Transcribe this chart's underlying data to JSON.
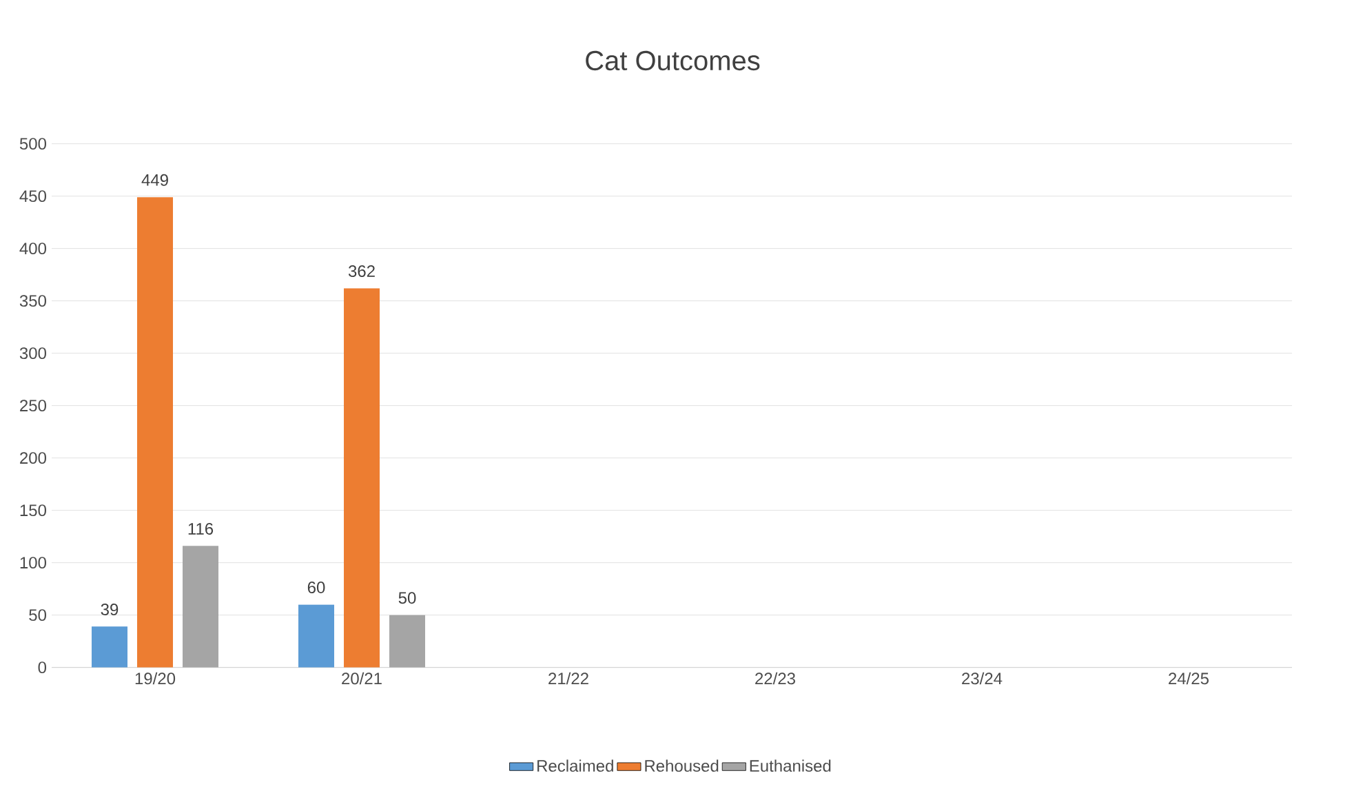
{
  "chart_data": {
    "type": "bar",
    "title": "Cat Outcomes",
    "categories": [
      "19/20",
      "20/21",
      "21/22",
      "22/23",
      "23/24",
      "24/25"
    ],
    "series": [
      {
        "name": "Reclaimed",
        "color": "#5b9bd5",
        "values": [
          39,
          60,
          null,
          null,
          null,
          null
        ]
      },
      {
        "name": "Rehoused",
        "color": "#ed7d31",
        "values": [
          449,
          362,
          null,
          null,
          null,
          null
        ]
      },
      {
        "name": "Euthanised",
        "color": "#a5a5a5",
        "values": [
          116,
          50,
          null,
          null,
          null,
          null
        ]
      }
    ],
    "ylim": [
      0,
      500
    ],
    "yticks": [
      0,
      50,
      100,
      150,
      200,
      250,
      300,
      350,
      400,
      450,
      500
    ],
    "grid": "y",
    "legend": "bottom",
    "data_labels": true
  }
}
